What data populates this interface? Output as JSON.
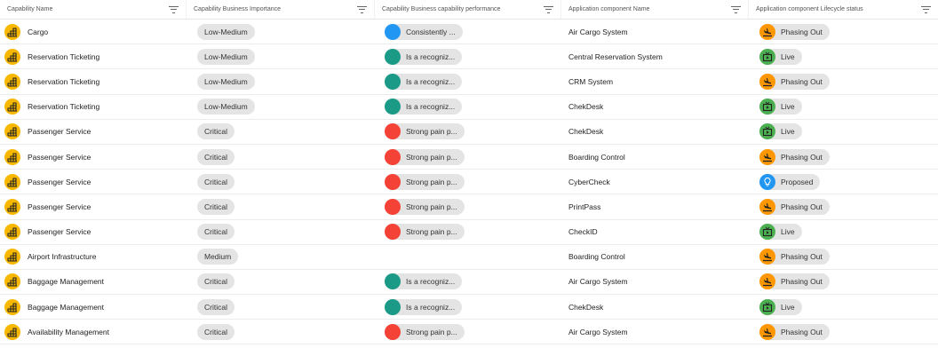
{
  "columns": [
    "Capability Name",
    "Capability Business Importance",
    "Capability Business capability performance",
    "Application component Name",
    "Application component Lifecycle status"
  ],
  "colors": {
    "perf_blue": "#2196f3",
    "perf_teal": "#1a9a87",
    "perf_red": "#f44336",
    "phasing_out": "#ff9800",
    "live": "#4caf50",
    "proposed": "#2196f3",
    "capability_icon": "#f9b800"
  },
  "rows": [
    {
      "name": "Cargo",
      "importance": "Low-Medium",
      "perf": "Consistently ...",
      "perf_color": "#2196f3",
      "app": "Air Cargo System",
      "status": "Phasing Out",
      "status_icon": "landing-plane-icon"
    },
    {
      "name": "Reservation Ticketing",
      "importance": "Low-Medium",
      "perf": "Is a recogniz...",
      "perf_color": "#1a9a87",
      "app": "Central Reservation System",
      "status": "Live",
      "status_icon": "live-tv-icon"
    },
    {
      "name": "Reservation Ticketing",
      "importance": "Low-Medium",
      "perf": "Is a recogniz...",
      "perf_color": "#1a9a87",
      "app": "CRM System",
      "status": "Phasing Out",
      "status_icon": "landing-plane-icon"
    },
    {
      "name": "Reservation Ticketing",
      "importance": "Low-Medium",
      "perf": "Is a recogniz...",
      "perf_color": "#1a9a87",
      "app": "ChekDesk",
      "status": "Live",
      "status_icon": "live-tv-icon"
    },
    {
      "name": "Passenger Service",
      "importance": "Critical",
      "perf": "Strong pain p...",
      "perf_color": "#f44336",
      "app": "ChekDesk",
      "status": "Live",
      "status_icon": "live-tv-icon"
    },
    {
      "name": "Passenger Service",
      "importance": "Critical",
      "perf": "Strong pain p...",
      "perf_color": "#f44336",
      "app": "Boarding Control",
      "status": "Phasing Out",
      "status_icon": "landing-plane-icon"
    },
    {
      "name": "Passenger Service",
      "importance": "Critical",
      "perf": "Strong pain p...",
      "perf_color": "#f44336",
      "app": "CyberCheck",
      "status": "Proposed",
      "status_icon": "lightbulb-icon"
    },
    {
      "name": "Passenger Service",
      "importance": "Critical",
      "perf": "Strong pain p...",
      "perf_color": "#f44336",
      "app": "PrintPass",
      "status": "Phasing Out",
      "status_icon": "landing-plane-icon"
    },
    {
      "name": "Passenger Service",
      "importance": "Critical",
      "perf": "Strong pain p...",
      "perf_color": "#f44336",
      "app": "CheckID",
      "status": "Live",
      "status_icon": "live-tv-icon"
    },
    {
      "name": "Airport Infrastructure",
      "importance": "Medium",
      "perf": "",
      "perf_color": "",
      "app": "Boarding Control",
      "status": "Phasing Out",
      "status_icon": "landing-plane-icon"
    },
    {
      "name": "Baggage Management",
      "importance": "Critical",
      "perf": "Is a recogniz...",
      "perf_color": "#1a9a87",
      "app": "Air Cargo System",
      "status": "Phasing Out",
      "status_icon": "landing-plane-icon"
    },
    {
      "name": "Baggage Management",
      "importance": "Critical",
      "perf": "Is a recogniz...",
      "perf_color": "#1a9a87",
      "app": "ChekDesk",
      "status": "Live",
      "status_icon": "live-tv-icon"
    },
    {
      "name": "Availability Management",
      "importance": "Critical",
      "perf": "Strong pain p...",
      "perf_color": "#f44336",
      "app": "Air Cargo System",
      "status": "Phasing Out",
      "status_icon": "landing-plane-icon"
    }
  ]
}
